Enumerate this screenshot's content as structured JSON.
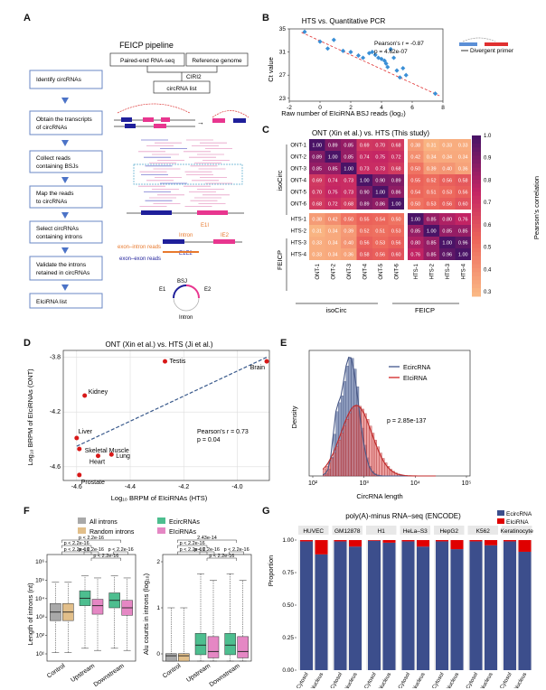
{
  "panels": {
    "A": "A",
    "B": "B",
    "C": "C",
    "D": "D",
    "E": "E",
    "F": "F",
    "G": "G"
  },
  "panelA": {
    "title": "FEICP pipeline",
    "inputs": [
      "Paired-end RNA-seq",
      "Reference genome"
    ],
    "tool": "CIRI2",
    "circ_list": "circRNA list",
    "steps": [
      "Identify circRNAs",
      "Obtain the transcripts of circRNAs",
      "Collect reads containing BSJs",
      "Map the reads to circRNAs",
      "Select circRNAs containing introns",
      "Validate the introns retained in circRNAs",
      "EIciRNA list"
    ],
    "legend_exon_intron": "exon–intron reads",
    "legend_exon_exon": "exon–exon reads",
    "labels": {
      "E1I": "E1I",
      "Intron": "Intron",
      "IE2": "IE2",
      "E1E2": "E1E2",
      "E1": "E1",
      "BSJ": "BSJ",
      "E2": "E2",
      "Intron2": "Intron"
    },
    "colors": {
      "exon1": "#1f1f9a",
      "exon2": "#e8368f",
      "intronArc": "#d33",
      "orange": "#e8792d"
    }
  },
  "panelB": {
    "title": "HTS vs. Quantitative PCR",
    "ylabel": "Ct value",
    "xlabel": "Raw number of EIciRNA BSJ reads (log₂)",
    "pearson": "Pearson's r = -0.87",
    "p": "p = 4.62e-07",
    "legend": "Divergent primer",
    "xticks": [
      "-2",
      "0",
      "2",
      "4",
      "6",
      "8"
    ],
    "yticks": [
      "23",
      "27",
      "31",
      "35"
    ]
  },
  "chart_data": [
    {
      "type": "scatter",
      "title": "HTS vs. Quantitative PCR",
      "xlabel": "Raw number of EIciRNA BSJ reads (log₂)",
      "ylabel": "Ct value",
      "xlim": [
        -2,
        8
      ],
      "ylim": [
        22.5,
        35
      ],
      "points": [
        [
          -1,
          34.5
        ],
        [
          0,
          32.8
        ],
        [
          0.5,
          31.6
        ],
        [
          0.9,
          33.1
        ],
        [
          1.5,
          31.2
        ],
        [
          2,
          31
        ],
        [
          2.5,
          30.4
        ],
        [
          2.8,
          30
        ],
        [
          3.2,
          30.8
        ],
        [
          3.4,
          31
        ],
        [
          3.6,
          30.5
        ],
        [
          3.8,
          30
        ],
        [
          4.0,
          29.8
        ],
        [
          4.2,
          29.5
        ],
        [
          4.3,
          29.0
        ],
        [
          4.4,
          28.4
        ],
        [
          4.6,
          31.5
        ],
        [
          4.8,
          30
        ],
        [
          5.0,
          27.8
        ],
        [
          5.2,
          26.6
        ],
        [
          5.4,
          28.2
        ],
        [
          5.6,
          27.0
        ],
        [
          7.5,
          23.8
        ]
      ],
      "trend": [
        [
          -1.2,
          34.4
        ],
        [
          7.8,
          23.4
        ]
      ]
    },
    {
      "type": "heatmap",
      "title": "ONT (Xin et al.) vs. HTS (This study)",
      "rows": [
        "ONT-1",
        "ONT-2",
        "ONT-3",
        "ONT-4",
        "ONT-5",
        "ONT-6",
        "HTS-1",
        "HTS-2",
        "HTS-3",
        "HTS-4"
      ],
      "cols": [
        "ONT-1",
        "ONT-2",
        "ONT-3",
        "ONT-4",
        "ONT-5",
        "ONT-6",
        "HTS-1",
        "HTS-2",
        "HTS-3",
        "HTS-4"
      ],
      "values": [
        [
          1.0,
          0.89,
          0.85,
          0.69,
          0.7,
          0.68,
          0.38,
          0.31,
          0.33,
          0.33
        ],
        [
          0.89,
          1.0,
          0.85,
          0.74,
          0.75,
          0.72,
          0.42,
          0.34,
          0.34,
          0.34
        ],
        [
          0.85,
          0.85,
          1.0,
          0.73,
          0.73,
          0.68,
          0.5,
          0.39,
          0.4,
          0.36
        ],
        [
          0.69,
          0.74,
          0.73,
          1.0,
          0.9,
          0.89,
          0.55,
          0.52,
          0.56,
          0.58
        ],
        [
          0.7,
          0.75,
          0.73,
          0.9,
          1.0,
          0.86,
          0.54,
          0.51,
          0.53,
          0.56
        ],
        [
          0.68,
          0.72,
          0.68,
          0.89,
          0.86,
          1.0,
          0.5,
          0.53,
          0.56,
          0.6
        ],
        [
          0.38,
          0.42,
          0.5,
          0.55,
          0.54,
          0.5,
          1.0,
          0.85,
          0.8,
          0.76
        ],
        [
          0.31,
          0.34,
          0.39,
          0.52,
          0.51,
          0.53,
          0.85,
          1.0,
          0.85,
          0.85
        ],
        [
          0.33,
          0.34,
          0.4,
          0.56,
          0.53,
          0.56,
          0.8,
          0.85,
          1.0,
          0.96
        ],
        [
          0.33,
          0.34,
          0.36,
          0.58,
          0.56,
          0.6,
          0.76,
          0.85,
          0.96,
          1.0
        ]
      ],
      "colorbar_label": "Pearson's correlation",
      "colorbar_ticks": [
        "1.0",
        "0.9",
        "0.8",
        "0.7",
        "0.6",
        "0.5",
        "0.4",
        "0.3"
      ],
      "groups": {
        "row_isoCirc": "isoCirc",
        "row_FEICP": "FEICP",
        "col_isoCirc": "isoCirc",
        "col_FEICP": "FEICP"
      }
    },
    {
      "type": "scatter",
      "title": "ONT (Xin et al.) vs. HTS (Ji et al.)",
      "xlabel": "Log₁₀ BRPM of EIciRNAs (HTS)",
      "ylabel": "Log₁₀ BRPM of EIciRNAs (ONT)",
      "xlim": [
        -4.65,
        -3.88
      ],
      "ylim": [
        -4.7,
        -3.75
      ],
      "points": [
        {
          "name": "Testis",
          "x": -4.27,
          "y": -3.83
        },
        {
          "name": "Brain",
          "x": -3.89,
          "y": -3.83
        },
        {
          "name": "Kidney",
          "x": -4.57,
          "y": -4.08
        },
        {
          "name": "Liver",
          "x": -4.6,
          "y": -4.39
        },
        {
          "name": "Skeletal Muscle",
          "x": -4.59,
          "y": -4.47
        },
        {
          "name": "Heart",
          "x": -4.52,
          "y": -4.52
        },
        {
          "name": "Lung",
          "x": -4.47,
          "y": -4.51
        },
        {
          "name": "Prostate",
          "x": -4.59,
          "y": -4.66
        }
      ],
      "trend": [
        [
          -4.6,
          -4.45
        ],
        [
          -3.89,
          -3.8
        ]
      ],
      "pearson": "Pearson's r = 0.73",
      "p": "p = 0.04",
      "xticks": [
        "-4.6",
        "-4.4",
        "-4.2",
        "-4.0"
      ],
      "yticks": [
        "-3.8",
        "-4.2",
        "-4.6"
      ]
    },
    {
      "type": "histogram",
      "xlabel": "CircRNA length",
      "ylabel": "Density",
      "series": [
        {
          "name": "EcircRNA",
          "color": "#5b6e9c"
        },
        {
          "name": "EIciRNA",
          "color": "#d94040"
        }
      ],
      "p": "p = 2.85e-137",
      "xticks": [
        "10²",
        "10³",
        "10⁴",
        "10⁵"
      ]
    },
    {
      "type": "boxplot",
      "ylabel": "Length of introns (nt)",
      "categories": [
        "Control",
        "Upstream",
        "Downstream"
      ],
      "series": [
        {
          "name": "All introns",
          "color": "#a9a9a9"
        },
        {
          "name": "Random introns",
          "color": "#e2bf8a"
        },
        {
          "name": "EcircRNAs",
          "color": "#4dbe8f"
        },
        {
          "name": "EIciRNAs",
          "color": "#e587c4"
        }
      ],
      "yticks": [
        "10¹",
        "10²",
        "10³",
        "10⁴",
        "10⁵",
        "10⁶"
      ],
      "pvals": [
        "p < 2.2e-16",
        "p < 2.2e-16",
        "p < 2.2e-16",
        "p < 2.2e-16",
        "p < 2.2e-16",
        "p < 2.2e-16"
      ]
    },
    {
      "type": "boxplot",
      "ylabel": "Alu counts in introns (log₁₀)",
      "categories": [
        "Control",
        "Upstream",
        "Downstream"
      ],
      "yticks": [
        "0",
        "1",
        "2"
      ],
      "pvals": [
        "p < 2.2e-16",
        "p < 2.2e-16",
        "p < 2.2e-16",
        "2.43e-14",
        "p < 2.2e-16",
        "p < 2.2e-16"
      ]
    },
    {
      "type": "bar",
      "title": "poly(A)-minus RNA–seq (ENCODE)",
      "ylabel": "Proportion",
      "cells": [
        "HUVEC",
        "GM12878",
        "H1",
        "HeLa–S3",
        "HepG2",
        "K562",
        "Keratinocyte"
      ],
      "categories": [
        "Cytosol",
        "Nucleus"
      ],
      "series": [
        {
          "name": "EcircRNA",
          "color": "#3c4e8c"
        },
        {
          "name": "EIciRNA",
          "color": "#e00000"
        }
      ],
      "eiciRNA_fraction": [
        [
          0.01,
          0.11
        ],
        [
          0.01,
          0.05
        ],
        [
          0.005,
          0.02
        ],
        [
          0.01,
          0.05
        ],
        [
          0.01,
          0.07
        ],
        [
          0.01,
          0.04
        ],
        [
          0.01,
          0.09
        ]
      ],
      "yticks": [
        "0.00",
        "0.25",
        "0.50",
        "0.75",
        "1.00"
      ]
    }
  ]
}
